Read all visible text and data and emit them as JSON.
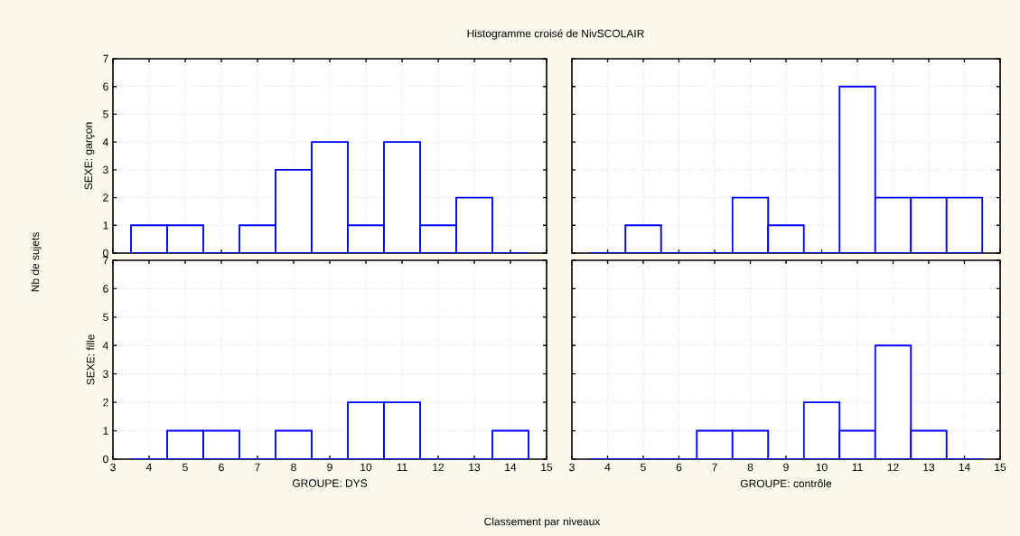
{
  "chart_data": [
    {
      "type": "histogram",
      "title": "Histogramme croisé de NivSCOLAIR",
      "ylabel": "SEXE: garçon",
      "annotations": [
        "Nb de sujets"
      ],
      "bins": [
        3.5,
        4.5,
        5.5,
        6.5,
        7.5,
        8.5,
        9.5,
        10.5,
        11.5,
        12.5,
        13.5,
        14.5
      ],
      "values": [
        1,
        1,
        0,
        1,
        3,
        4,
        1,
        4,
        1,
        2,
        0
      ],
      "color": "#0000ff",
      "xlim": [
        3,
        15
      ],
      "ylim": [
        0,
        7
      ],
      "xticks": [
        3,
        4,
        5,
        6,
        7,
        8,
        9,
        10,
        11,
        12,
        13,
        14,
        15
      ],
      "yticks": [
        0,
        1,
        2,
        3,
        4,
        5,
        6,
        7
      ],
      "grid": true,
      "tick_labels": "y"
    },
    {
      "type": "histogram",
      "bins": [
        3.5,
        4.5,
        5.5,
        6.5,
        7.5,
        8.5,
        9.5,
        10.5,
        11.5,
        12.5,
        13.5,
        14.5
      ],
      "values": [
        0,
        1,
        0,
        0,
        2,
        1,
        0,
        6,
        2,
        2,
        2
      ],
      "color": "#0000ff",
      "xlim": [
        3,
        15
      ],
      "ylim": [
        0,
        7
      ],
      "xticks": [
        3,
        4,
        5,
        6,
        7,
        8,
        9,
        10,
        11,
        12,
        13,
        14,
        15
      ],
      "yticks": [
        0,
        1,
        2,
        3,
        4,
        5,
        6,
        7
      ],
      "grid": true,
      "tick_labels": false
    },
    {
      "type": "histogram",
      "ylabel": "SEXE: fille",
      "xlabel": "GROUPE: DYS",
      "annotations": [
        "Classement par niveaux"
      ],
      "bins": [
        3.5,
        4.5,
        5.5,
        6.5,
        7.5,
        8.5,
        9.5,
        10.5,
        11.5,
        12.5,
        13.5,
        14.5
      ],
      "values": [
        0,
        1,
        1,
        0,
        1,
        0,
        2,
        2,
        0,
        0,
        1
      ],
      "color": "#0000ff",
      "xlim": [
        3,
        15
      ],
      "ylim": [
        0,
        7
      ],
      "xticks": [
        3,
        4,
        5,
        6,
        7,
        8,
        9,
        10,
        11,
        12,
        13,
        14,
        15
      ],
      "yticks": [
        0,
        1,
        2,
        3,
        4,
        5,
        6,
        7
      ],
      "grid": true
    },
    {
      "type": "histogram",
      "xlabel": "GROUPE: contrôle",
      "bins": [
        3.5,
        4.5,
        5.5,
        6.5,
        7.5,
        8.5,
        9.5,
        10.5,
        11.5,
        12.5,
        13.5,
        14.5
      ],
      "values": [
        0,
        0,
        0,
        1,
        1,
        0,
        2,
        1,
        4,
        1,
        0
      ],
      "color": "#0000ff",
      "xlim": [
        3,
        15
      ],
      "ylim": [
        0,
        7
      ],
      "xticks": [
        3,
        4,
        5,
        6,
        7,
        8,
        9,
        10,
        11,
        12,
        13,
        14,
        15
      ],
      "yticks": [
        0,
        1,
        2,
        3,
        4,
        5,
        6,
        7
      ],
      "grid": true,
      "tick_labels": "x"
    }
  ]
}
